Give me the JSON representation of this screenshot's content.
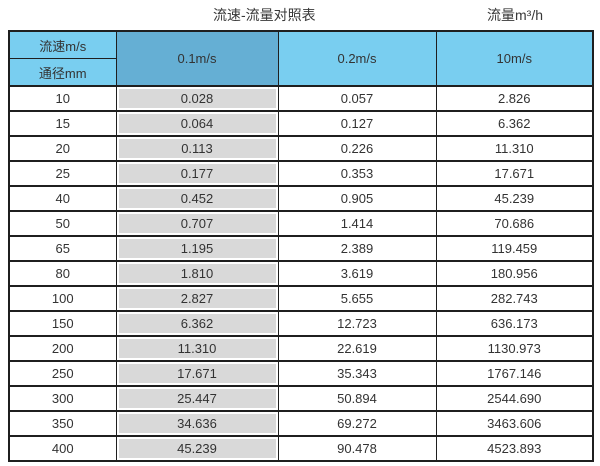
{
  "page": {
    "title": "流速-流量对照表",
    "unit_label": "流量m³/h"
  },
  "table": {
    "corner_top": "流速m/s",
    "corner_bottom": "通径mm",
    "velocity_columns": [
      "0.1m/s",
      "0.2m/s",
      "10m/s"
    ],
    "rows": [
      [
        "10",
        "0.028",
        "0.057",
        "2.826"
      ],
      [
        "15",
        "0.064",
        "0.127",
        "6.362"
      ],
      [
        "20",
        "0.113",
        "0.226",
        "11.310"
      ],
      [
        "25",
        "0.177",
        "0.353",
        "17.671"
      ],
      [
        "40",
        "0.452",
        "0.905",
        "45.239"
      ],
      [
        "50",
        "0.707",
        "1.414",
        "70.686"
      ],
      [
        "65",
        "1.195",
        "2.389",
        "119.459"
      ],
      [
        "80",
        "1.810",
        "3.619",
        "180.956"
      ],
      [
        "100",
        "2.827",
        "5.655",
        "282.743"
      ],
      [
        "150",
        "6.362",
        "12.723",
        "636.173"
      ],
      [
        "200",
        "11.310",
        "22.619",
        "1130.973"
      ],
      [
        "250",
        "17.671",
        "35.343",
        "1767.146"
      ],
      [
        "300",
        "25.447",
        "50.894",
        "2544.690"
      ],
      [
        "350",
        "34.636",
        "69.272",
        "3463.606"
      ],
      [
        "400",
        "45.239",
        "90.478",
        "4523.893"
      ]
    ]
  },
  "chart_data": {
    "type": "table",
    "title": "流速-流量对照表",
    "unit": "流量m³/h",
    "columns": [
      "通径mm",
      "0.1m/s",
      "0.2m/s",
      "10m/s"
    ],
    "rows": [
      [
        10,
        0.028,
        0.057,
        2.826
      ],
      [
        15,
        0.064,
        0.127,
        6.362
      ],
      [
        20,
        0.113,
        0.226,
        11.31
      ],
      [
        25,
        0.177,
        0.353,
        17.671
      ],
      [
        40,
        0.452,
        0.905,
        45.239
      ],
      [
        50,
        0.707,
        1.414,
        70.686
      ],
      [
        65,
        1.195,
        2.389,
        119.459
      ],
      [
        80,
        1.81,
        3.619,
        180.956
      ],
      [
        100,
        2.827,
        5.655,
        282.743
      ],
      [
        150,
        6.362,
        12.723,
        636.173
      ],
      [
        200,
        11.31,
        22.619,
        1130.973
      ],
      [
        250,
        17.671,
        35.343,
        1767.146
      ],
      [
        300,
        25.447,
        50.894,
        2544.69
      ],
      [
        350,
        34.636,
        69.272,
        3463.606
      ],
      [
        400,
        45.239,
        90.478,
        4523.893
      ]
    ],
    "layout_hints": {
      "highlighted_column": "0.1m/s",
      "header_split_cell": [
        "流速m/s",
        "通径mm"
      ],
      "grid": true
    }
  },
  "colors": {
    "header_light_blue": "#79CEF0",
    "header_dark_blue": "#65AFD4",
    "highlight_gray": "#D9D9D9",
    "border": "#1F1F1F",
    "text": "#333333"
  }
}
